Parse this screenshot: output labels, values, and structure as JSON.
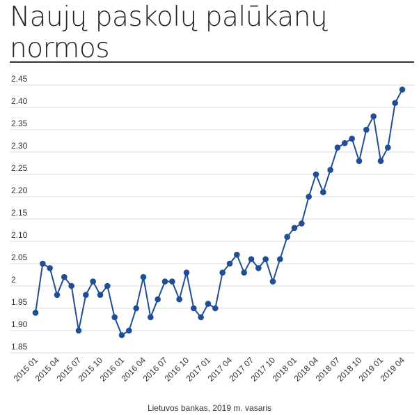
{
  "header": {
    "title": "Naujų paskolų palūkanų normos"
  },
  "footer": {
    "source": "Lietuvos bankas, 2019 m. vasaris"
  },
  "chart_data": {
    "type": "line",
    "title": "Naujų paskolų palūkanų normos",
    "xlabel": "",
    "ylabel": "",
    "ylim": [
      1.85,
      2.45
    ],
    "yticks": [
      "2.45",
      "2.40",
      "2.35",
      "2.30",
      "2.25",
      "2.20",
      "2.15",
      "2.10",
      "2.05",
      "2",
      "1.95",
      "1.90",
      "1.85"
    ],
    "ytick_values": [
      2.45,
      2.4,
      2.35,
      2.3,
      2.25,
      2.2,
      2.15,
      2.1,
      2.05,
      2.0,
      1.95,
      1.9,
      1.85
    ],
    "grid": true,
    "line_color": "#1f4e96",
    "x_tick_labels": [
      "2015 01",
      "2015 04",
      "2015 07",
      "2015 10",
      "2016 01",
      "2016 04",
      "2016 07",
      "2016 10",
      "2017 01",
      "2017 04",
      "2017 07",
      "2017 10",
      "2018 01",
      "2018 04",
      "2018 07",
      "2018 10",
      "2019 01",
      "2019 04"
    ],
    "series": [
      {
        "values": [
          1.94,
          2.05,
          2.04,
          1.98,
          2.02,
          2.0,
          1.9,
          1.98,
          2.01,
          1.98,
          2.0,
          1.93,
          1.89,
          1.9,
          1.95,
          2.02,
          1.93,
          1.97,
          2.01,
          2.01,
          1.97,
          2.03,
          1.95,
          1.93,
          1.96,
          1.95,
          2.03,
          2.05,
          2.07,
          2.03,
          2.06,
          2.04,
          2.06,
          2.01,
          2.06,
          2.11,
          2.13,
          2.14,
          2.2,
          2.25,
          2.21,
          2.26,
          2.31,
          2.32,
          2.33,
          2.28,
          2.35,
          2.38,
          2.28,
          2.31,
          2.41,
          2.44
        ]
      }
    ]
  }
}
